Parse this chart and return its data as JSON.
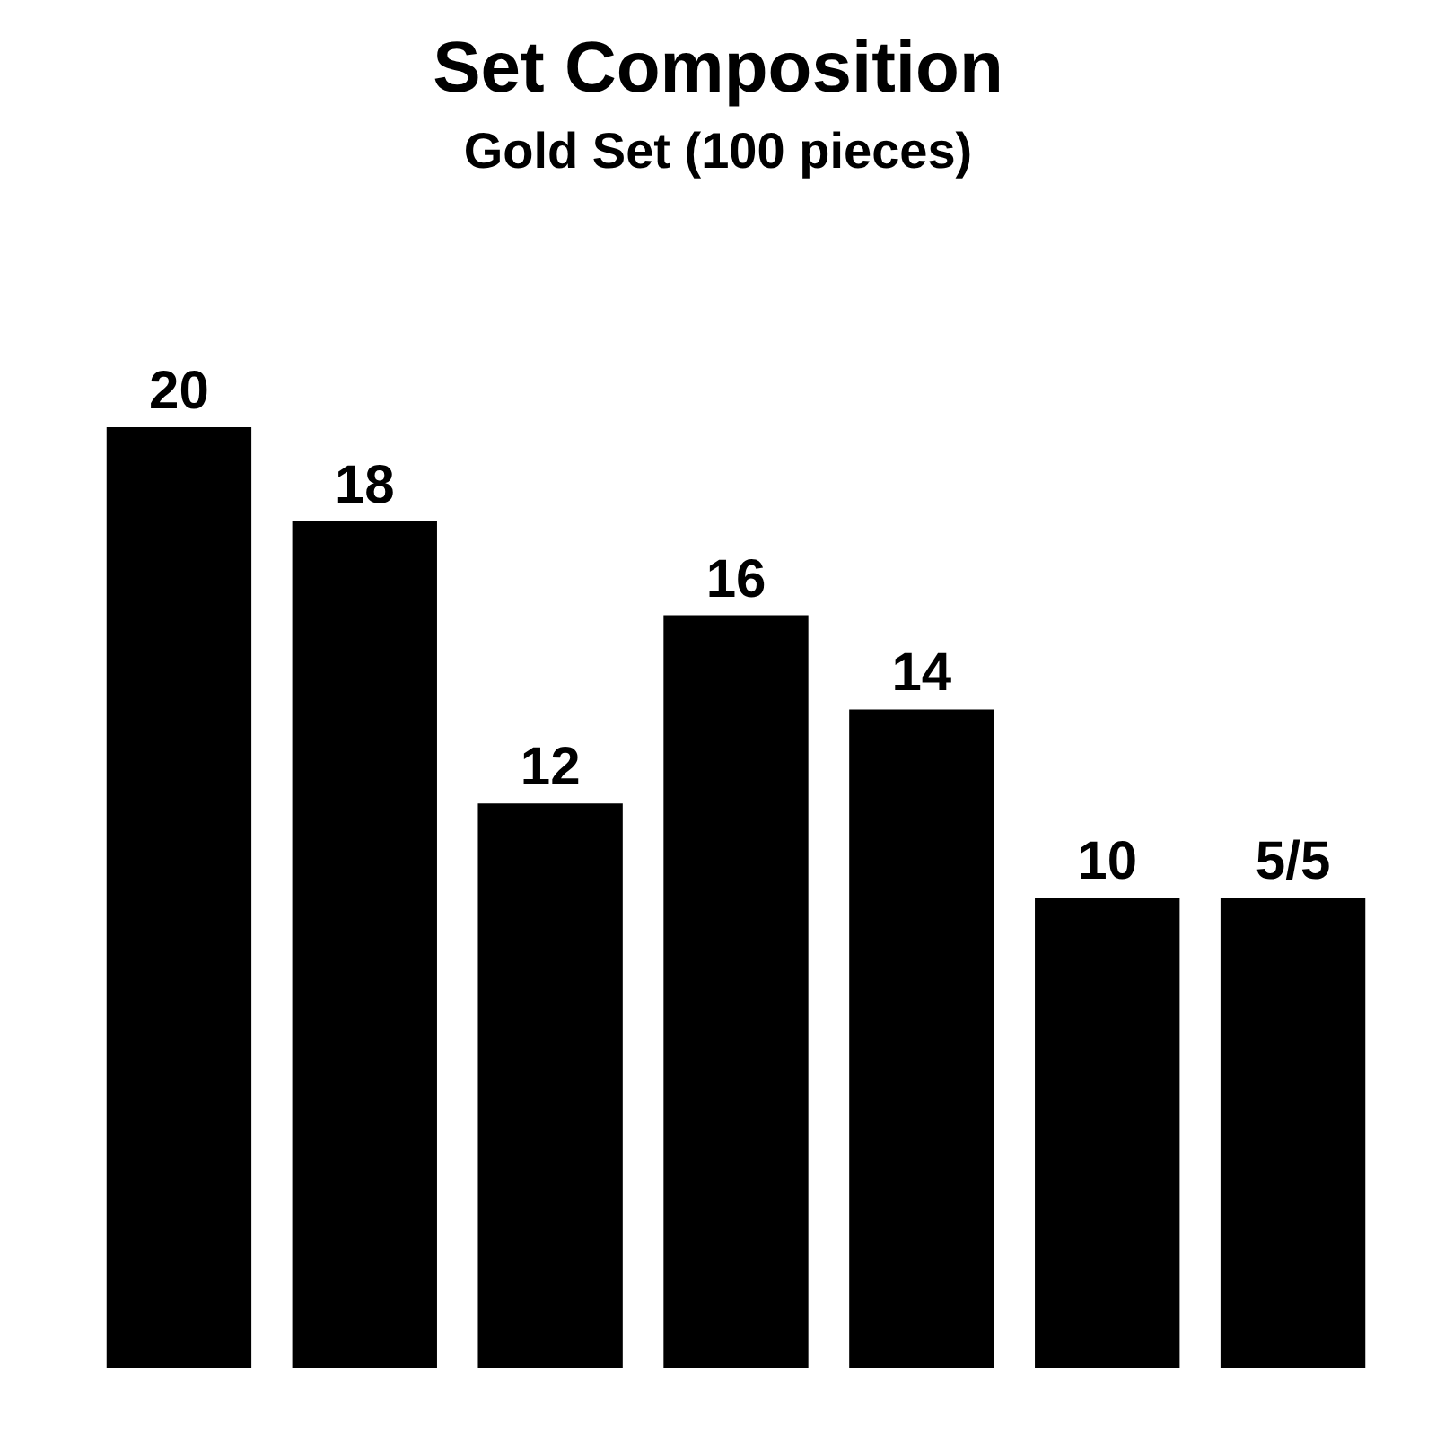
{
  "chart_data": {
    "type": "bar",
    "title": "Set Composition",
    "subtitle": "Gold Set (100 pieces)",
    "categories": [
      null,
      null,
      null,
      null,
      null,
      null,
      null
    ],
    "stacked": true,
    "series": [
      {
        "color": "#000000",
        "values": [
          20,
          18,
          12,
          16,
          14,
          10,
          5
        ],
        "value_labels": [
          "20",
          "18",
          "12",
          "16",
          "14",
          "10",
          null
        ]
      },
      {
        "color": "#000000",
        "values": [
          null,
          null,
          null,
          null,
          null,
          null,
          5
        ]
      }
    ],
    "annotations": [
      "5/5"
    ],
    "tick_labels": false
  }
}
